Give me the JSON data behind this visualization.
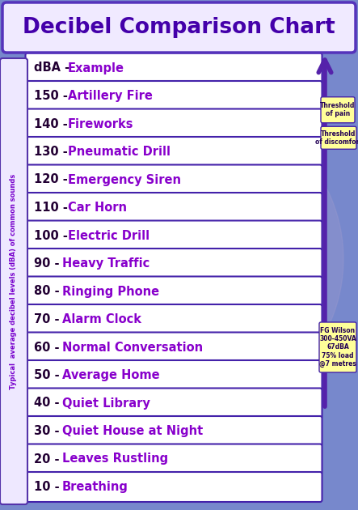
{
  "title": "Decibel Comparison Chart",
  "title_color": "#4400AA",
  "title_bg": "#F0EAFF",
  "title_border": "#5533BB",
  "bg_color": "#7788CC",
  "rows": [
    {
      "num": "dBA",
      "example": "Example"
    },
    {
      "num": "150",
      "example": "Artillery Fire"
    },
    {
      "num": "140",
      "example": "Fireworks"
    },
    {
      "num": "130",
      "example": "Pneumatic Drill"
    },
    {
      "num": "120",
      "example": "Emergency Siren"
    },
    {
      "num": "110",
      "example": "Car Horn"
    },
    {
      "num": "100",
      "example": "Electric Drill"
    },
    {
      "num": "90",
      "example": "Heavy Traffic"
    },
    {
      "num": "80",
      "example": "Ringing Phone"
    },
    {
      "num": "70",
      "example": "Alarm Clock"
    },
    {
      "num": "60",
      "example": "Normal Conversation"
    },
    {
      "num": "50",
      "example": "Average Home"
    },
    {
      "num": "40",
      "example": "Quiet Library"
    },
    {
      "num": "30",
      "example": "Quiet House at Night"
    },
    {
      "num": "20",
      "example": "Leaves Rustling"
    },
    {
      "num": "10",
      "example": "Breathing"
    }
  ],
  "row_bg": "#FFFFFF",
  "num_color": "#220033",
  "example_color": "#8800CC",
  "border_color": "#4422AA",
  "arrow_color": "#5522AA",
  "side_label": "Typical  average decibel levels (dBA) of common sounds",
  "side_label_color": "#7700CC",
  "side_box_bg": "#EEE8FF",
  "side_box_border": "#5533AA",
  "threshold_pain_text": "Threshold\nof pain",
  "threshold_discomfort_text": "Threshold\nof discomfort",
  "threshold_box_bg": "#FFFF99",
  "threshold_color": "#220055",
  "fg_wilson_text": "FG Wilson\n300-450VA\n67dBA\n75% load\n@7 metres",
  "fg_wilson_box_bg": "#FFFF99",
  "fg_wilson_color": "#220055",
  "circle_color": "#9999CC",
  "circle_alpha": 0.4
}
